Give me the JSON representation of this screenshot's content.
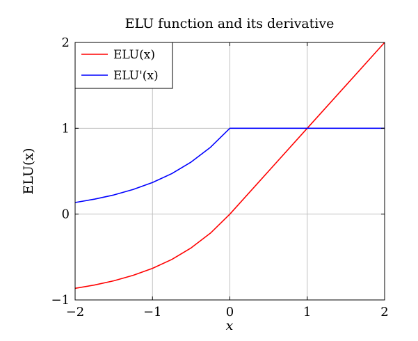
{
  "chart_data": {
    "type": "line",
    "title": "ELU function and its derivative",
    "xlabel": "x",
    "ylabel": "ELU(x)",
    "xlim": [
      -2,
      2
    ],
    "ylim": [
      -1,
      2
    ],
    "xticks": [
      -2,
      -1,
      0,
      1,
      2
    ],
    "yticks": [
      -1,
      0,
      1,
      2
    ],
    "xtick_labels": [
      "−2",
      "−1",
      "0",
      "1",
      "2"
    ],
    "ytick_labels": [
      "−1",
      "0",
      "1",
      "2"
    ],
    "grid": true,
    "legend_position": "top-left",
    "series": [
      {
        "name": "ELU(x)",
        "color": "#ff0000",
        "x": [
          -2,
          -1.75,
          -1.5,
          -1.25,
          -1,
          -0.75,
          -0.5,
          -0.25,
          0,
          0.5,
          1,
          1.5,
          2
        ],
        "y": [
          -0.865,
          -0.826,
          -0.777,
          -0.713,
          -0.632,
          -0.528,
          -0.393,
          -0.221,
          0,
          0.5,
          1,
          1.5,
          2
        ]
      },
      {
        "name": "ELU'(x)",
        "color": "#0000ff",
        "x": [
          -2,
          -1.75,
          -1.5,
          -1.25,
          -1,
          -0.75,
          -0.5,
          -0.25,
          0,
          0.5,
          1,
          1.5,
          2
        ],
        "y": [
          0.135,
          0.174,
          0.223,
          0.287,
          0.368,
          0.472,
          0.607,
          0.779,
          1,
          1,
          1,
          1,
          1
        ]
      }
    ]
  }
}
